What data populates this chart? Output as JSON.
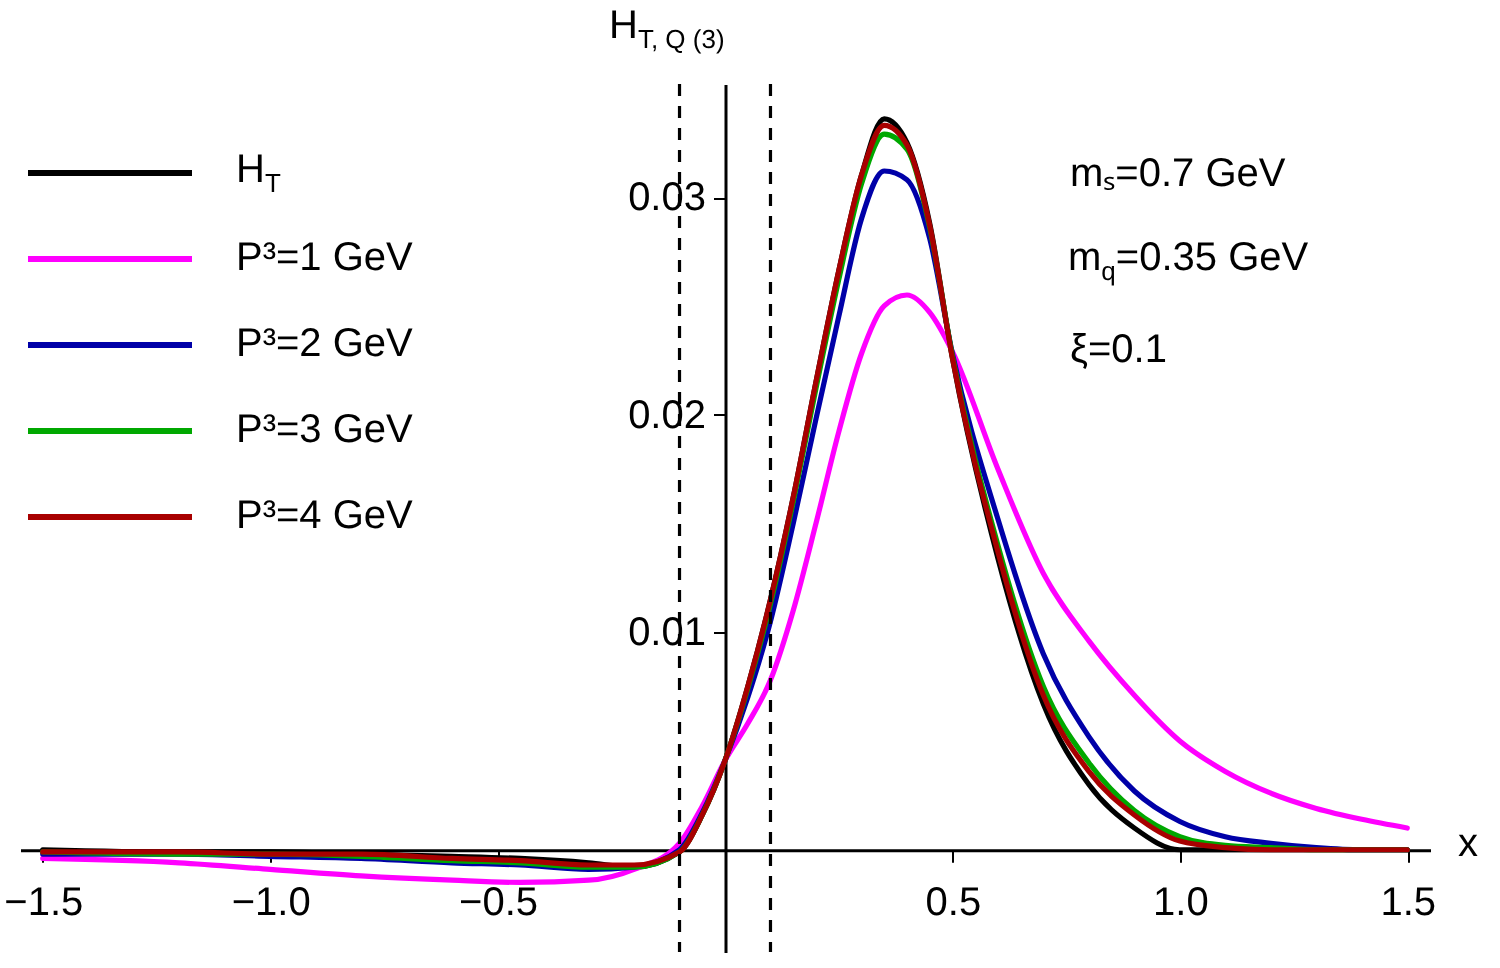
{
  "chart_data": {
    "type": "line",
    "xlabel": "x",
    "ylabel": "H$_{T, Q (3)}$",
    "x": [
      -1.5,
      -1.2,
      -1.0,
      -0.8,
      -0.6,
      -0.45,
      -0.3,
      -0.2,
      -0.1,
      -0.05,
      0,
      0.05,
      0.1,
      0.15,
      0.2,
      0.25,
      0.3,
      0.35,
      0.4,
      0.45,
      0.5,
      0.6,
      0.7,
      0.8,
      0.9,
      1.0,
      1.1,
      1.2,
      1.3,
      1.4,
      1.5
    ],
    "series": [
      {
        "name": "H$_{T}$",
        "color": "#000000",
        "values": [
          0,
          -0.0001,
          -0.0001,
          -0.0002,
          -0.0003,
          -0.0004,
          -0.0006,
          -0.0008,
          -0.0001,
          0.0016,
          0.0041,
          0.0075,
          0.0115,
          0.0162,
          0.0215,
          0.0266,
          0.031,
          0.0336,
          0.0325,
          0.0288,
          0.0226,
          0.0134,
          0.0067,
          0.003,
          0.001,
          0,
          0,
          0,
          0,
          0,
          0
        ]
      },
      {
        "name": "P³=1 GeV",
        "color": "#ff00ff",
        "values": [
          -0.0004,
          -0.0006,
          -0.0009,
          -0.0012,
          -0.0014,
          -0.0015,
          -0.0014,
          -0.0009,
          0.0003,
          0.002,
          0.0041,
          0.0058,
          0.0078,
          0.011,
          0.015,
          0.0192,
          0.0228,
          0.025,
          0.0255,
          0.0247,
          0.0229,
          0.0175,
          0.0127,
          0.0096,
          0.0071,
          0.005,
          0.0036,
          0.0026,
          0.0019,
          0.0014,
          0.001
        ]
      },
      {
        "name": "P³=2 GeV",
        "color": "#0000a8",
        "values": [
          -0.0002,
          -0.0002,
          -0.0003,
          -0.0004,
          -0.0006,
          -0.0007,
          -0.0009,
          -0.0008,
          0,
          0.0017,
          0.0041,
          0.007,
          0.0105,
          0.015,
          0.0198,
          0.0245,
          0.029,
          0.0312,
          0.0308,
          0.0281,
          0.0228,
          0.0152,
          0.009,
          0.0052,
          0.0027,
          0.0013,
          0.0006,
          0.0003,
          0.0001,
          0,
          0
        ]
      },
      {
        "name": "P³=3 GeV",
        "color": "#00a800",
        "values": [
          -0.0001,
          -0.0002,
          -0.0002,
          -0.0003,
          -0.0005,
          -0.0006,
          -0.0008,
          -0.0008,
          -0.0001,
          0.0016,
          0.0041,
          0.0074,
          0.0113,
          0.016,
          0.0212,
          0.0262,
          0.0306,
          0.0329,
          0.0322,
          0.0286,
          0.0227,
          0.014,
          0.0075,
          0.004,
          0.0018,
          0.0006,
          0.0002,
          0.0001,
          0,
          0,
          0
        ]
      },
      {
        "name": "P³=4 GeV",
        "color": "#a80000",
        "values": [
          -0.0001,
          -0.0001,
          -0.0002,
          -0.0002,
          -0.0004,
          -0.0005,
          -0.0007,
          -0.0007,
          -0.0001,
          0.0016,
          0.0041,
          0.0075,
          0.0115,
          0.0162,
          0.0215,
          0.0266,
          0.031,
          0.0333,
          0.0324,
          0.0287,
          0.0226,
          0.0137,
          0.0071,
          0.0036,
          0.0016,
          0.0004,
          0.0001,
          0,
          0,
          0,
          0
        ]
      }
    ],
    "xlim": [
      -1.55,
      1.55
    ],
    "ylim": [
      -0.0047,
      0.0352
    ],
    "xticks": [
      {
        "value": -1.5,
        "label": "−1.5"
      },
      {
        "value": -1.0,
        "label": "−1.0"
      },
      {
        "value": -0.5,
        "label": "−0.5"
      },
      {
        "value": 0.5,
        "label": "0.5"
      },
      {
        "value": 1.0,
        "label": "1.0"
      },
      {
        "value": 1.5,
        "label": "1.5"
      }
    ],
    "yticks": [
      0.01,
      0.02,
      0.03
    ],
    "ref_lines": [
      {
        "axis": "x",
        "value": -0.1,
        "line_style": "dashed"
      },
      {
        "axis": "x",
        "value": 0.1,
        "line_style": "dashed"
      }
    ],
    "annotations": [
      "mₛ=0.7 GeV",
      "m$_{q}$=0.35 GeV",
      "ξ=0.1"
    ],
    "legend": "top left",
    "grid": false,
    "marker": "none",
    "line_style": "solid"
  }
}
